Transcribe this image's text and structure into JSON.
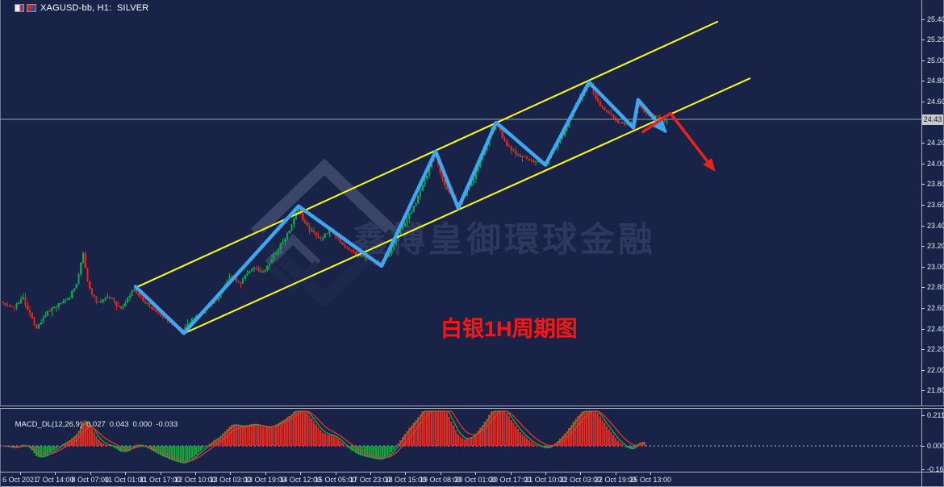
{
  "window": {
    "title": "XAGUSD-bb, H1:  SILVER",
    "icons": [
      "chart-window-icon",
      "indicator-window-icon"
    ]
  },
  "price_axis": {
    "ticks": [
      "25.40",
      "25.20",
      "25.00",
      "24.80",
      "24.60",
      "24.20",
      "24.00",
      "23.80",
      "23.60",
      "23.40",
      "23.20",
      "23.00",
      "22.80",
      "22.60",
      "22.40",
      "22.20",
      "22.00",
      "21.80"
    ],
    "current_price": "24.43"
  },
  "macd_panel": {
    "indicator_label": "MACD_DL(12,26,9)",
    "values": [
      "0.027",
      "0.043",
      "0.000",
      "-0.033"
    ],
    "axis_ticks": [
      "0.211",
      "0.000",
      "-0.162"
    ]
  },
  "time_axis": {
    "labels": [
      "6 Oct 2021",
      "7 Oct 14:00",
      "8 Oct 07:00",
      "11 Oct 01:00",
      "11 Oct 17:00",
      "12 Oct 10:00",
      "13 Oct 03:00",
      "13 Oct 19:00",
      "14 Oct 12:00",
      "15 Oct 05:00",
      "17 Oct 23:00",
      "18 Oct 15:00",
      "19 Oct 08:00",
      "20 Oct 01:00",
      "20 Oct 17:00",
      "21 Oct 10:00",
      "22 Oct 03:00",
      "22 Oct 19:00",
      "25 Oct 13:00"
    ]
  },
  "annotations": {
    "trend_label": {
      "text": "白银1H周期图",
      "color": "#ff1414"
    },
    "watermark_text": "鑫博皇御環球金融",
    "channel": {
      "color": "#ffff00",
      "upper": [
        [
          168,
          22.8
        ],
        [
          890,
          25.38
        ]
      ],
      "lower": [
        [
          226,
          22.35
        ],
        [
          930,
          24.83
        ]
      ]
    },
    "zigzag": {
      "color": "#3fa6f0",
      "points": [
        [
          168,
          22.81
        ],
        [
          228,
          22.36
        ],
        [
          370,
          23.59
        ],
        [
          473,
          23.01
        ],
        [
          540,
          24.12
        ],
        [
          568,
          23.57
        ],
        [
          615,
          24.4
        ],
        [
          676,
          23.99
        ],
        [
          730,
          24.79
        ],
        [
          785,
          24.35
        ],
        [
          791,
          24.62
        ],
        [
          824,
          24.32
        ]
      ]
    },
    "forecast_arrow": {
      "color": "#e8231c",
      "points": [
        [
          797,
          24.31
        ],
        [
          831,
          24.49
        ],
        [
          884,
          23.95
        ]
      ]
    }
  },
  "chart_data": {
    "type": "candlestick",
    "symbol": "XAGUSD-bb",
    "timeframe": "H1",
    "instrument": "SILVER",
    "title": "XAGUSD-bb, H1:  SILVER",
    "ylim": [
      21.7,
      25.52
    ],
    "y_ticks": [
      25.4,
      25.2,
      25.0,
      24.8,
      24.6,
      24.4,
      24.2,
      24.0,
      23.8,
      23.6,
      23.4,
      23.2,
      23.0,
      22.8,
      22.6,
      22.4,
      22.2,
      22.0,
      21.8
    ],
    "current_price": 24.43,
    "x_labels": [
      "6 Oct 2021",
      "7 Oct 14:00",
      "8 Oct 07:00",
      "11 Oct 01:00",
      "11 Oct 17:00",
      "12 Oct 10:00",
      "13 Oct 03:00",
      "13 Oct 19:00",
      "14 Oct 12:00",
      "15 Oct 05:00",
      "17 Oct 23:00",
      "18 Oct 15:00",
      "19 Oct 08:00",
      "20 Oct 01:00",
      "20 Oct 17:00",
      "21 Oct 10:00",
      "22 Oct 03:00",
      "22 Oct 19:00",
      "25 Oct 13:00"
    ],
    "grid": "off",
    "price_path": [
      [
        4,
        22.66
      ],
      [
        18,
        22.6
      ],
      [
        30,
        22.7
      ],
      [
        46,
        22.4
      ],
      [
        58,
        22.55
      ],
      [
        72,
        22.62
      ],
      [
        88,
        22.72
      ],
      [
        97,
        22.85
      ],
      [
        104,
        23.15
      ],
      [
        111,
        22.8
      ],
      [
        122,
        22.66
      ],
      [
        138,
        22.71
      ],
      [
        152,
        22.58
      ],
      [
        166,
        22.79
      ],
      [
        182,
        22.65
      ],
      [
        200,
        22.54
      ],
      [
        214,
        22.46
      ],
      [
        228,
        22.38
      ],
      [
        242,
        22.52
      ],
      [
        258,
        22.62
      ],
      [
        272,
        22.7
      ],
      [
        286,
        22.92
      ],
      [
        300,
        22.85
      ],
      [
        314,
        23.0
      ],
      [
        328,
        22.93
      ],
      [
        344,
        23.15
      ],
      [
        358,
        23.32
      ],
      [
        370,
        23.57
      ],
      [
        384,
        23.36
      ],
      [
        398,
        23.28
      ],
      [
        412,
        23.36
      ],
      [
        428,
        23.2
      ],
      [
        444,
        23.12
      ],
      [
        460,
        23.08
      ],
      [
        473,
        23.02
      ],
      [
        486,
        23.16
      ],
      [
        500,
        23.4
      ],
      [
        514,
        23.58
      ],
      [
        526,
        23.8
      ],
      [
        540,
        24.1
      ],
      [
        552,
        23.8
      ],
      [
        562,
        23.68
      ],
      [
        570,
        23.6
      ],
      [
        582,
        23.76
      ],
      [
        592,
        23.92
      ],
      [
        602,
        24.14
      ],
      [
        612,
        24.35
      ],
      [
        618,
        24.38
      ],
      [
        626,
        24.22
      ],
      [
        640,
        24.1
      ],
      [
        654,
        24.05
      ],
      [
        668,
        24.02
      ],
      [
        676,
        24.0
      ],
      [
        690,
        24.16
      ],
      [
        702,
        24.34
      ],
      [
        716,
        24.58
      ],
      [
        726,
        24.73
      ],
      [
        732,
        24.78
      ],
      [
        742,
        24.6
      ],
      [
        752,
        24.5
      ],
      [
        766,
        24.42
      ],
      [
        780,
        24.37
      ],
      [
        786,
        24.4
      ],
      [
        791,
        24.6
      ],
      [
        800,
        24.5
      ],
      [
        812,
        24.46
      ],
      [
        824,
        24.43
      ]
    ],
    "macd": {
      "indicator": "MACD_DL",
      "params": [
        12,
        26,
        9
      ],
      "display_values": [
        0.027,
        0.043,
        0.0,
        -0.033
      ],
      "axis_range": [
        -0.162,
        0.211
      ]
    }
  },
  "colors": {
    "background": "#182347",
    "bull_candle": "#0ba84b",
    "bear_candle": "#e0271c",
    "channel_line": "#ffff00",
    "zigzag_line": "#3fa6f0",
    "forecast_arrow": "#e8231c",
    "current_price_line": "#9aa0b0",
    "macd_hist_positive": "#e02b22",
    "macd_hist_negative": "#16a33c",
    "macd_line_fast": "#2fa04c",
    "macd_line_signal": "#e03830",
    "axis_text": "#e7eaf2",
    "watermark": "#4a5680",
    "trend_label_red": "#ff1414"
  }
}
